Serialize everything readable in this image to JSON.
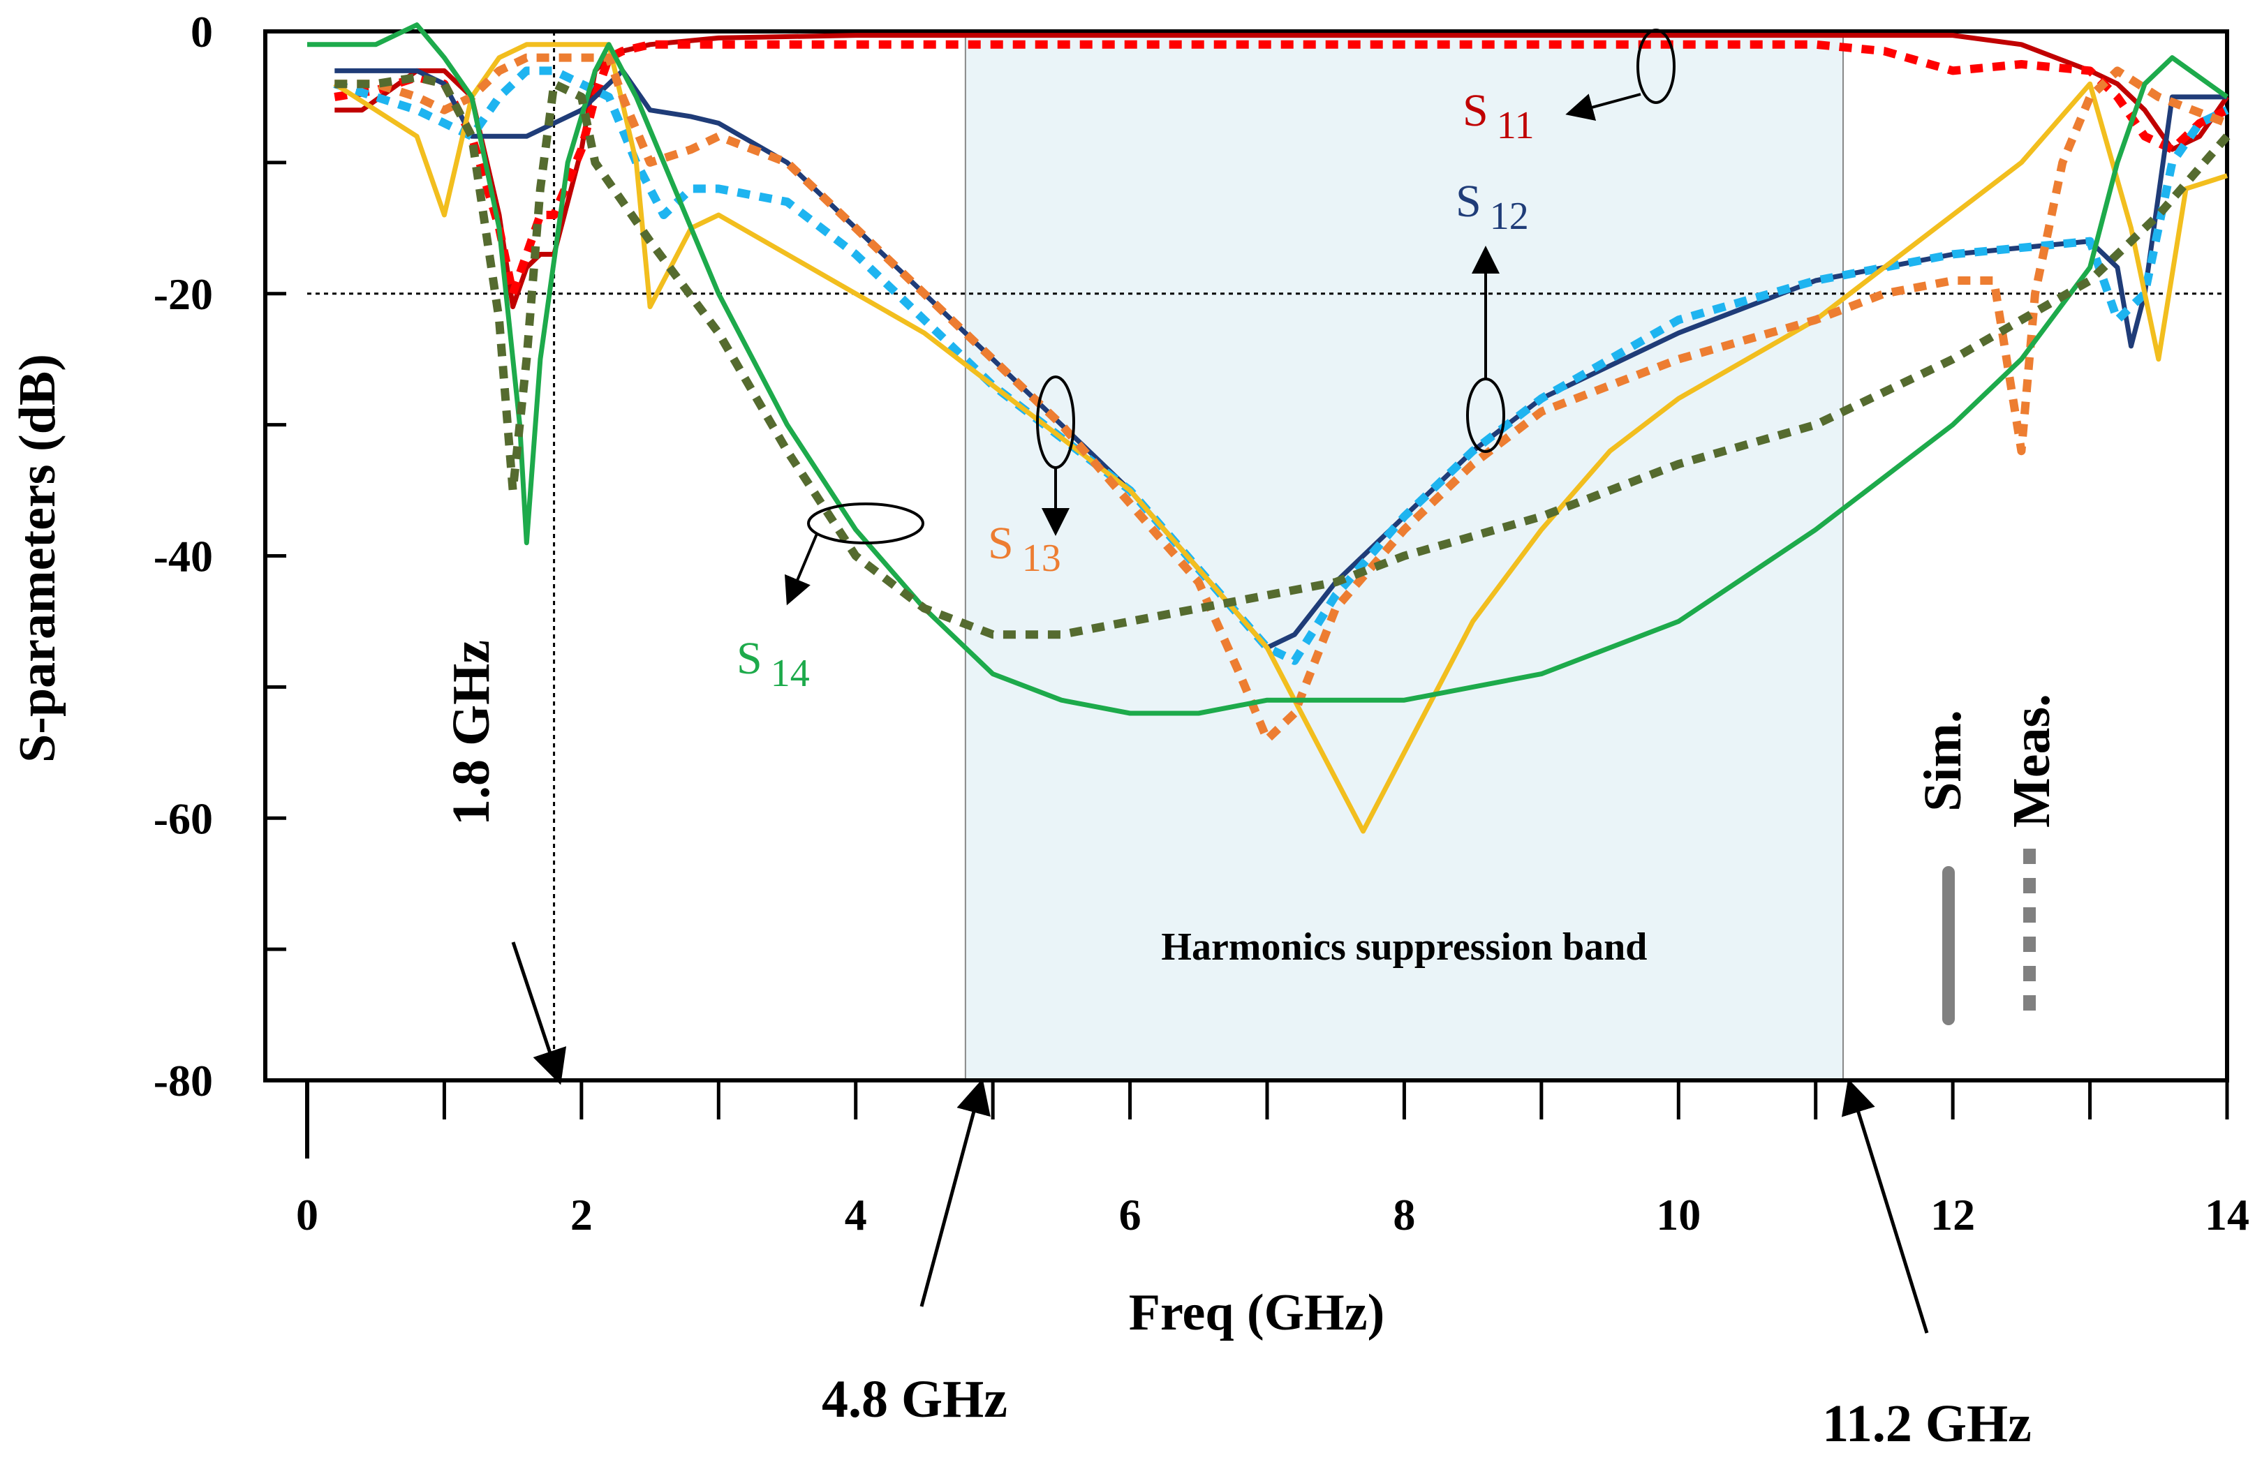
{
  "chart_data": {
    "type": "line",
    "xlabel": "Freq (GHz)",
    "ylabel": "S-parameters (dB)",
    "xlim": [
      0,
      14
    ],
    "ylim": [
      -80,
      0
    ],
    "x_ticks": [
      0,
      2,
      4,
      6,
      8,
      10,
      12,
      14
    ],
    "x_tick_labels": [
      "0",
      "2",
      "4",
      "6",
      "8",
      "10",
      "12",
      "14"
    ],
    "y_ticks": [
      0,
      -20,
      -40,
      -60,
      -80
    ],
    "y_tick_labels": [
      "0",
      "-20",
      "-40",
      "-60",
      "-80"
    ],
    "grid": false,
    "reference_lines": {
      "y": -20,
      "x": 1.8
    },
    "band": {
      "from": 4.8,
      "to": 11.2,
      "label": "Harmonics suppression band",
      "color": "#EAF4F8"
    },
    "markers": [
      {
        "label": "1.8 GHz",
        "x": 1.8
      },
      {
        "label": "4.8 GHz",
        "x": 4.8
      },
      {
        "label": "11.2 GHz",
        "x": 11.2
      }
    ],
    "legend": {
      "position": "bottom-right",
      "sim_label": "Sim.",
      "meas_label": "Meas.",
      "color": "#808080"
    },
    "series": [
      {
        "name": "S11",
        "label_main": "S",
        "label_sub": "11",
        "color": "#C00000",
        "style": "solid",
        "x": [
          0.2,
          0.4,
          0.6,
          0.8,
          1.0,
          1.2,
          1.4,
          1.5,
          1.6,
          1.7,
          1.8,
          2.0,
          2.1,
          2.2,
          2.3,
          2.5,
          3,
          4,
          5,
          6,
          7,
          8,
          9,
          10,
          11,
          12,
          12.5,
          13,
          13.2,
          13.4,
          13.6,
          13.8,
          14
        ],
        "values": [
          -6,
          -6,
          -4.5,
          -3,
          -3,
          -5,
          -14,
          -21,
          -18,
          -17,
          -17,
          -9,
          -3,
          -2,
          -1.5,
          -1,
          -0.5,
          -0.3,
          -0.3,
          -0.3,
          -0.3,
          -0.3,
          -0.3,
          -0.3,
          -0.3,
          -0.3,
          -1,
          -3,
          -4,
          -6,
          -9,
          -8,
          -5
        ]
      },
      {
        "name": "S11",
        "label_main": "S",
        "label_sub": "11",
        "color": "#FF0000",
        "style": "dashed",
        "x": [
          0.2,
          0.5,
          0.8,
          1.0,
          1.2,
          1.4,
          1.5,
          1.6,
          1.7,
          1.8,
          2.0,
          2.1,
          2.2,
          2.3,
          2.5,
          3,
          4,
          5,
          6,
          7,
          8,
          9,
          10,
          11,
          11.5,
          12,
          12.5,
          13,
          13.2,
          13.4,
          13.6,
          13.8,
          14
        ],
        "values": [
          -5,
          -4.5,
          -3.5,
          -4,
          -8,
          -15,
          -20,
          -17,
          -14,
          -14,
          -9,
          -5,
          -2,
          -1.5,
          -1,
          -1,
          -1,
          -1,
          -1,
          -1,
          -1,
          -1,
          -1,
          -1,
          -1.5,
          -3,
          -2.5,
          -3,
          -5,
          -8,
          -9,
          -7,
          -6
        ]
      },
      {
        "name": "S12",
        "label_main": "S",
        "label_sub": "12",
        "color": "#1F3C78",
        "style": "solid",
        "x": [
          0.2,
          0.5,
          0.8,
          1.0,
          1.2,
          1.4,
          1.6,
          1.8,
          2.0,
          2.1,
          2.2,
          2.3,
          2.5,
          2.8,
          3.0,
          3.5,
          4.0,
          4.5,
          5.0,
          5.5,
          6.0,
          6.5,
          7.0,
          7.2,
          7.5,
          8.0,
          8.5,
          9.0,
          10.0,
          11.0,
          12.0,
          13.0,
          13.2,
          13.3,
          13.4,
          13.6,
          14
        ],
        "values": [
          -3,
          -3,
          -3,
          -4,
          -8,
          -8,
          -8,
          -7,
          -6,
          -5,
          -4,
          -3,
          -6,
          -6.5,
          -7,
          -10,
          -15,
          -20,
          -25,
          -30,
          -35,
          -41,
          -47,
          -46,
          -42,
          -37,
          -32,
          -28,
          -23,
          -19,
          -17,
          -16,
          -18,
          -24,
          -20,
          -5,
          -5
        ]
      },
      {
        "name": "S12",
        "label_main": "S",
        "label_sub": "12",
        "color": "#1EB4F0",
        "style": "dashed",
        "x": [
          0.2,
          0.5,
          0.8,
          1.0,
          1.2,
          1.4,
          1.6,
          1.8,
          2.0,
          2.2,
          2.4,
          2.6,
          2.8,
          3.0,
          3.5,
          4.0,
          4.5,
          5.0,
          5.5,
          6.0,
          6.5,
          7.0,
          7.2,
          7.5,
          8.0,
          8.5,
          9.0,
          10.0,
          11.0,
          12.0,
          13.0,
          13.2,
          13.4,
          13.6,
          13.8,
          14
        ],
        "values": [
          -4,
          -5,
          -6,
          -7,
          -8,
          -5,
          -3,
          -3,
          -4,
          -5,
          -10,
          -14,
          -12,
          -12,
          -13,
          -17,
          -22,
          -27,
          -31,
          -35,
          -41,
          -47,
          -48,
          -43,
          -37,
          -32,
          -28,
          -22,
          -19,
          -17,
          -16,
          -22,
          -20,
          -10,
          -7,
          -6
        ]
      },
      {
        "name": "S13",
        "label_main": "S",
        "label_sub": "13",
        "color": "#F2BE1E",
        "style": "solid",
        "x": [
          0.2,
          0.5,
          0.8,
          1.0,
          1.2,
          1.4,
          1.6,
          1.8,
          2.0,
          2.2,
          2.4,
          2.5,
          2.8,
          3.0,
          3.5,
          4.0,
          4.5,
          5.0,
          5.5,
          6.0,
          6.5,
          7.0,
          7.5,
          7.7,
          8.0,
          8.5,
          9.0,
          9.5,
          10.0,
          11.0,
          12.0,
          12.5,
          13.0,
          13.3,
          13.5,
          13.7,
          14
        ],
        "values": [
          -4,
          -6,
          -8,
          -14,
          -5,
          -2,
          -1,
          -1,
          -1,
          -1,
          -10,
          -21,
          -15,
          -14,
          -17,
          -20,
          -23,
          -27,
          -31,
          -35,
          -41,
          -47,
          -57,
          -61,
          -55,
          -45,
          -38,
          -32,
          -28,
          -22,
          -14,
          -10,
          -4,
          -15,
          -25,
          -12,
          -11
        ]
      },
      {
        "name": "S13",
        "label_main": "S",
        "label_sub": "13",
        "color": "#ED7D31",
        "style": "dashed",
        "x": [
          0.2,
          0.5,
          0.8,
          1.0,
          1.2,
          1.4,
          1.6,
          1.8,
          2.0,
          2.2,
          2.3,
          2.5,
          2.8,
          3.0,
          3.5,
          4.0,
          4.5,
          5.0,
          5.5,
          6.0,
          6.5,
          6.8,
          7.0,
          7.2,
          7.5,
          8.0,
          8.5,
          9.0,
          10.0,
          11.0,
          11.5,
          12.0,
          12.3,
          12.5,
          12.6,
          12.8,
          13.0,
          13.2,
          13.5,
          14
        ],
        "values": [
          -4,
          -4,
          -5,
          -6,
          -5,
          -3,
          -2,
          -2,
          -2,
          -2,
          -5,
          -10,
          -9,
          -8,
          -10,
          -15,
          -20,
          -25,
          -30,
          -36,
          -42,
          -49,
          -54,
          -52,
          -44,
          -38,
          -33,
          -29,
          -25,
          -22,
          -20,
          -19,
          -19,
          -32,
          -20,
          -10,
          -5,
          -3,
          -5,
          -7
        ]
      },
      {
        "name": "S14",
        "label_main": "S",
        "label_sub": "14",
        "color": "#1DAA4B",
        "style": "solid",
        "x": [
          0,
          0.5,
          0.8,
          1.0,
          1.2,
          1.4,
          1.55,
          1.6,
          1.7,
          1.9,
          2.1,
          2.2,
          2.4,
          2.6,
          3.0,
          3.5,
          4.0,
          4.5,
          5.0,
          5.5,
          6.0,
          6.5,
          7.0,
          7.5,
          8.0,
          8.5,
          9.0,
          10.0,
          11.0,
          12.0,
          12.5,
          13.0,
          13.2,
          13.4,
          13.6,
          14
        ],
        "values": [
          -1,
          -1,
          0.5,
          -2,
          -5,
          -15,
          -30,
          -39,
          -25,
          -10,
          -3,
          -1,
          -5,
          -10,
          -20,
          -30,
          -38,
          -44,
          -49,
          -51,
          -52,
          -52,
          -51,
          -51,
          -51,
          -50,
          -49,
          -45,
          -38,
          -30,
          -25,
          -18,
          -10,
          -4,
          -2,
          -5
        ]
      },
      {
        "name": "S14",
        "label_main": "S",
        "label_sub": "14",
        "color": "#556B2F",
        "style": "dashed",
        "x": [
          0.2,
          0.5,
          0.8,
          1.0,
          1.2,
          1.4,
          1.5,
          1.6,
          1.7,
          1.8,
          2.0,
          2.1,
          2.3,
          2.5,
          3.0,
          3.5,
          4.0,
          4.5,
          5.0,
          5.5,
          6.0,
          6.5,
          7.0,
          7.5,
          8.0,
          9.0,
          10.0,
          11.0,
          12.0,
          13.0,
          13.5,
          14
        ],
        "values": [
          -4,
          -4,
          -3.5,
          -4,
          -8,
          -22,
          -35,
          -25,
          -12,
          -4,
          -5,
          -10,
          -13,
          -16,
          -23,
          -32,
          -40,
          -44,
          -46,
          -46,
          -45,
          -44,
          -43,
          -42,
          -40,
          -37,
          -33,
          -30,
          -25,
          -19,
          -14,
          -8
        ]
      }
    ]
  }
}
